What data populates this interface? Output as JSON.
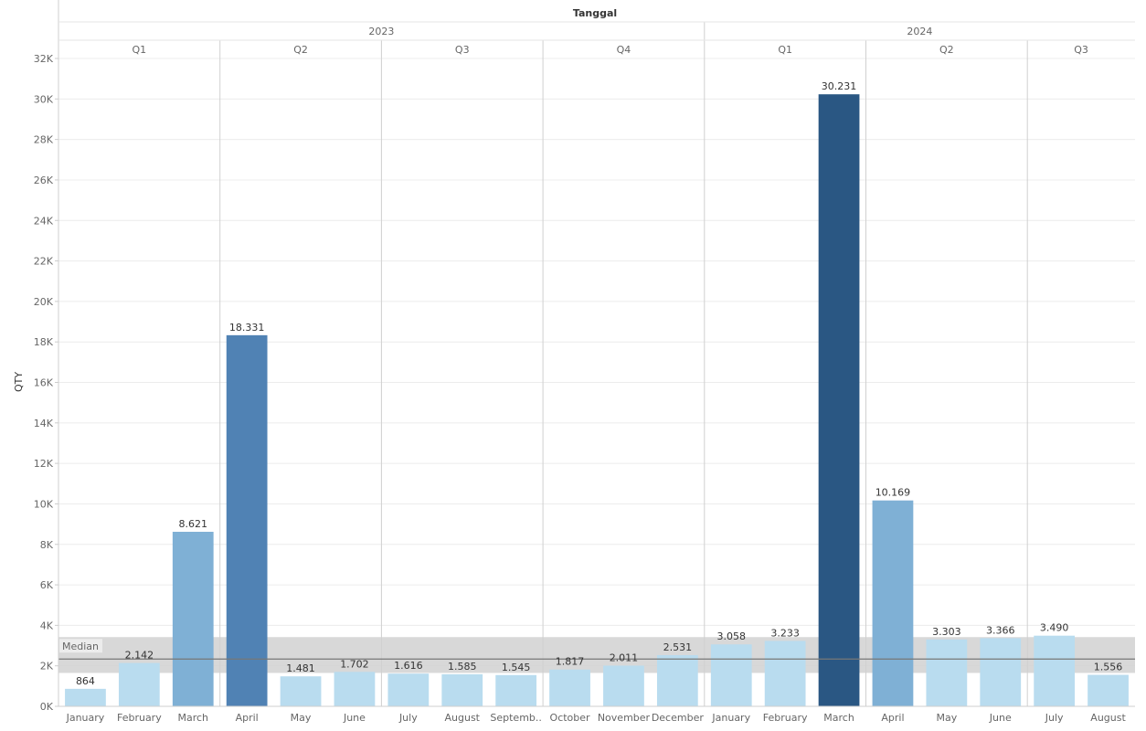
{
  "chart_data": {
    "type": "bar",
    "title": "Tanggal",
    "ylabel": "QTY",
    "ylim": [
      0,
      32000
    ],
    "y_ticks": [
      {
        "value": 0,
        "label": "0K"
      },
      {
        "value": 2000,
        "label": "2K"
      },
      {
        "value": 4000,
        "label": "4K"
      },
      {
        "value": 6000,
        "label": "6K"
      },
      {
        "value": 8000,
        "label": "8K"
      },
      {
        "value": 10000,
        "label": "10K"
      },
      {
        "value": 12000,
        "label": "12K"
      },
      {
        "value": 14000,
        "label": "14K"
      },
      {
        "value": 16000,
        "label": "16K"
      },
      {
        "value": 18000,
        "label": "18K"
      },
      {
        "value": 20000,
        "label": "20K"
      },
      {
        "value": 22000,
        "label": "22K"
      },
      {
        "value": 24000,
        "label": "24K"
      },
      {
        "value": 26000,
        "label": "26K"
      },
      {
        "value": 28000,
        "label": "28K"
      },
      {
        "value": 30000,
        "label": "30K"
      },
      {
        "value": 32000,
        "label": "32K"
      }
    ],
    "years": [
      {
        "label": "2023",
        "quarters": [
          {
            "label": "Q1",
            "months": [
              {
                "label": "January",
                "value": 864,
                "value_label": "864"
              },
              {
                "label": "February",
                "value": 2142,
                "value_label": "2.142"
              },
              {
                "label": "March",
                "value": 8621,
                "value_label": "8.621"
              }
            ]
          },
          {
            "label": "Q2",
            "months": [
              {
                "label": "April",
                "value": 18331,
                "value_label": "18.331"
              },
              {
                "label": "May",
                "value": 1481,
                "value_label": "1.481"
              },
              {
                "label": "June",
                "value": 1702,
                "value_label": "1.702"
              }
            ]
          },
          {
            "label": "Q3",
            "months": [
              {
                "label": "July",
                "value": 1616,
                "value_label": "1.616"
              },
              {
                "label": "August",
                "value": 1585,
                "value_label": "1.585"
              },
              {
                "label": "Septemb..",
                "value": 1545,
                "value_label": "1.545"
              }
            ]
          },
          {
            "label": "Q4",
            "months": [
              {
                "label": "October",
                "value": 1817,
                "value_label": "1.817"
              },
              {
                "label": "November",
                "value": 2011,
                "value_label": "2.011"
              },
              {
                "label": "December",
                "value": 2531,
                "value_label": "2.531"
              }
            ]
          }
        ]
      },
      {
        "label": "2024",
        "quarters": [
          {
            "label": "Q1",
            "months": [
              {
                "label": "January",
                "value": 3058,
                "value_label": "3.058"
              },
              {
                "label": "February",
                "value": 3233,
                "value_label": "3.233"
              },
              {
                "label": "March",
                "value": 30231,
                "value_label": "30.231"
              }
            ]
          },
          {
            "label": "Q2",
            "months": [
              {
                "label": "April",
                "value": 10169,
                "value_label": "10.169"
              },
              {
                "label": "May",
                "value": 3303,
                "value_label": "3.303"
              },
              {
                "label": "June",
                "value": 3366,
                "value_label": "3.366"
              }
            ]
          },
          {
            "label": "Q3",
            "months": [
              {
                "label": "July",
                "value": 3490,
                "value_label": "3.490"
              },
              {
                "label": "August",
                "value": 1556,
                "value_label": "1.556"
              }
            ]
          }
        ]
      }
    ],
    "reference_line": {
      "label": "Median",
      "value": 2336,
      "band": [
        1650,
        3420
      ]
    },
    "color_scale": [
      "#b9dcef",
      "#7fb0d5",
      "#5082b4",
      "#2a5783"
    ],
    "grid": true,
    "legend": "none"
  }
}
